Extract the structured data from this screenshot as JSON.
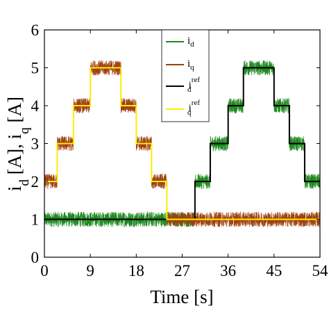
{
  "chart_data": {
    "type": "line",
    "xlabel": "Time [s]",
    "ylabel": "i_d [A], i_q [A]",
    "xlim": [
      0,
      54
    ],
    "ylim": [
      0,
      6
    ],
    "xticks": [
      0,
      9,
      18,
      27,
      36,
      45,
      54
    ],
    "yticks": [
      0,
      1,
      2,
      3,
      4,
      5,
      6
    ],
    "grid": false,
    "legend_position": "top-right",
    "series": [
      {
        "name": "i_d",
        "kind": "measured",
        "color": "#1f8a1f",
        "reference": "i_d_ref",
        "ripple_amplitude": 0.2,
        "note": "noisy measured d-axis current tracking its reference"
      },
      {
        "name": "i_q",
        "kind": "measured",
        "color": "#a0400e",
        "reference": "i_q_ref",
        "ripple_amplitude": 0.2,
        "note": "noisy measured q-axis current tracking its reference"
      },
      {
        "name": "i_d^ref",
        "id": "i_d_ref",
        "kind": "reference",
        "color": "#000000",
        "points": [
          [
            0,
            1
          ],
          [
            29.5,
            1
          ],
          [
            29.5,
            2
          ],
          [
            32.5,
            2
          ],
          [
            32.5,
            3
          ],
          [
            36,
            3
          ],
          [
            36,
            4
          ],
          [
            39,
            4
          ],
          [
            39,
            5
          ],
          [
            45,
            5
          ],
          [
            45,
            4
          ],
          [
            48,
            4
          ],
          [
            48,
            3
          ],
          [
            51,
            3
          ],
          [
            51,
            2
          ],
          [
            54,
            2
          ]
        ]
      },
      {
        "name": "i_q^ref",
        "id": "i_q_ref",
        "kind": "reference",
        "color": "#ffee00",
        "points": [
          [
            0,
            2
          ],
          [
            2.5,
            2
          ],
          [
            2.5,
            3
          ],
          [
            5.7,
            3
          ],
          [
            5.7,
            4
          ],
          [
            9,
            4
          ],
          [
            9,
            5
          ],
          [
            15,
            5
          ],
          [
            15,
            4
          ],
          [
            18,
            4
          ],
          [
            18,
            3
          ],
          [
            21,
            3
          ],
          [
            21,
            2
          ],
          [
            24,
            2
          ],
          [
            24,
            1
          ],
          [
            54,
            1
          ]
        ]
      }
    ]
  },
  "legend": {
    "entries": [
      {
        "main": "i",
        "sub": "d",
        "sup": "",
        "color": "#1f8a1f"
      },
      {
        "main": "i",
        "sub": "q",
        "sup": "",
        "color": "#a0400e"
      },
      {
        "main": "i",
        "sub": "d",
        "sup": "ref",
        "color": "#000000"
      },
      {
        "main": "i",
        "sub": "q",
        "sup": "ref",
        "color": "#ffee00"
      }
    ]
  },
  "axis_text": {
    "ylabel_main_1": "i",
    "ylabel_sub_1": "d",
    "ylabel_mid": " [A], i",
    "ylabel_sub_2": "q",
    "ylabel_end": " [A]",
    "xlabel": "Time [s]"
  }
}
